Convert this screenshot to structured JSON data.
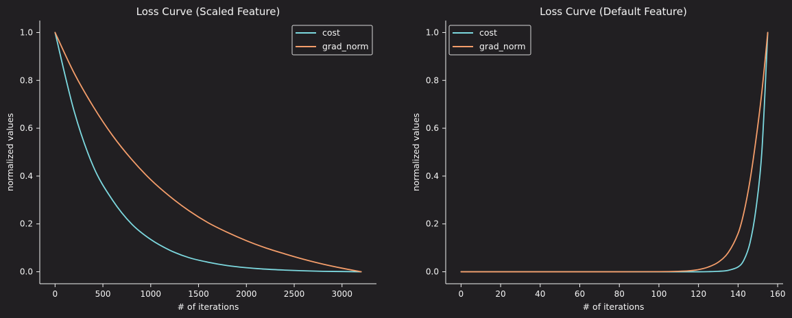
{
  "theme": {
    "background": "#211f22",
    "axis_color": "#f4f4f4",
    "text_color": "#f4f4f4",
    "legend_border": "#d9d9d9"
  },
  "chart_data": [
    {
      "type": "line",
      "title": "Loss Curve (Scaled Feature)",
      "xlabel": "# of iterations",
      "ylabel": "normalized values",
      "xlim": [
        -160,
        3360
      ],
      "ylim": [
        -0.05,
        1.05
      ],
      "xticks": [
        0,
        500,
        1000,
        1500,
        2000,
        2500,
        3000
      ],
      "yticks": [
        0.0,
        0.2,
        0.4,
        0.6,
        0.8,
        1.0
      ],
      "xtick_labels": [
        "0",
        "500",
        "1000",
        "1500",
        "2000",
        "2500",
        "3000"
      ],
      "ytick_labels": [
        "0.0",
        "0.2",
        "0.4",
        "0.6",
        "0.8",
        "1.0"
      ],
      "grid": false,
      "legend_position": "top-right",
      "x": [
        0,
        200,
        400,
        600,
        800,
        1000,
        1200,
        1400,
        1600,
        1800,
        2000,
        2200,
        2400,
        2600,
        2800,
        3000,
        3200
      ],
      "series": [
        {
          "name": "cost",
          "color": "#7dd9e0",
          "values": [
            1.0,
            0.67,
            0.44,
            0.3,
            0.2,
            0.135,
            0.09,
            0.059,
            0.04,
            0.026,
            0.017,
            0.011,
            0.007,
            0.004,
            0.002,
            0.001,
            0.0
          ]
        },
        {
          "name": "grad_norm",
          "color": "#f59e6b",
          "values": [
            1.0,
            0.83,
            0.69,
            0.57,
            0.47,
            0.385,
            0.315,
            0.255,
            0.205,
            0.165,
            0.13,
            0.1,
            0.075,
            0.052,
            0.032,
            0.015,
            0.0
          ]
        }
      ]
    },
    {
      "type": "line",
      "title": "Loss Curve (Default Feature)",
      "xlabel": "# of iterations",
      "ylabel": "normalized values",
      "xlim": [
        -7.75,
        162.75
      ],
      "ylim": [
        -0.05,
        1.05
      ],
      "xticks": [
        0,
        20,
        40,
        60,
        80,
        100,
        120,
        140,
        160
      ],
      "yticks": [
        0.0,
        0.2,
        0.4,
        0.6,
        0.8,
        1.0
      ],
      "xtick_labels": [
        "0",
        "20",
        "40",
        "60",
        "80",
        "100",
        "120",
        "140",
        "160"
      ],
      "ytick_labels": [
        "0.0",
        "0.2",
        "0.4",
        "0.6",
        "0.8",
        "1.0"
      ],
      "grid": false,
      "legend_position": "top-left",
      "x": [
        0,
        20,
        40,
        60,
        80,
        100,
        110,
        115,
        120,
        125,
        130,
        135,
        140,
        143,
        146,
        149,
        152,
        155
      ],
      "series": [
        {
          "name": "cost",
          "color": "#7dd9e0",
          "values": [
            0.0,
            0.0,
            0.0,
            0.0,
            0.0,
            0.0,
            0.0,
            0.0,
            0.0,
            0.0005,
            0.002,
            0.006,
            0.02,
            0.05,
            0.12,
            0.26,
            0.5,
            1.0
          ]
        },
        {
          "name": "grad_norm",
          "color": "#f59e6b",
          "values": [
            0.0,
            0.0,
            0.0,
            0.0,
            0.0,
            0.0005,
            0.002,
            0.004,
            0.009,
            0.02,
            0.04,
            0.08,
            0.16,
            0.25,
            0.38,
            0.55,
            0.75,
            1.0
          ]
        }
      ]
    }
  ]
}
